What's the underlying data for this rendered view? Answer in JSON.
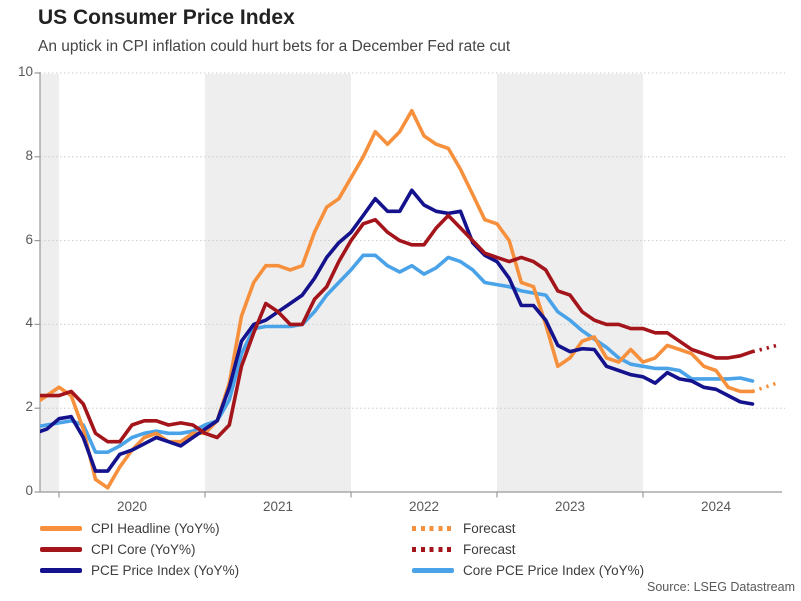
{
  "header": {
    "title": "US Consumer Price Index",
    "subtitle": "An uptick in CPI inflation could hurt bets for a December Fed rate cut"
  },
  "source": "Source: LSEG Datastream",
  "colors": {
    "cpi_headline": "#F7903C",
    "cpi_core": "#A3141B",
    "pce": "#14128C",
    "core_pce": "#4AA3E8",
    "band": "#EEEEEE",
    "grid": "#CBCBCB",
    "axis": "#999999",
    "axis_text": "#595959"
  },
  "legend": {
    "left": [
      {
        "label": "CPI Headline (YoY%)",
        "color_key": "cpi_headline",
        "style": "solid"
      },
      {
        "label": "CPI Core (YoY%)",
        "color_key": "cpi_core",
        "style": "solid"
      },
      {
        "label": "PCE Price Index (YoY%)",
        "color_key": "pce",
        "style": "solid"
      }
    ],
    "right": [
      {
        "label": "Forecast",
        "color_key": "cpi_headline",
        "style": "dotted"
      },
      {
        "label": "Forecast",
        "color_key": "cpi_core",
        "style": "dotted"
      },
      {
        "label": "Core PCE Price Index (YoY%)",
        "color_key": "core_pce",
        "style": "solid"
      }
    ]
  },
  "chart_data": {
    "type": "line",
    "title": "US Consumer Price Index",
    "x_start_month": "2019-11",
    "x_frequency": "monthly",
    "months_before_2020": 2,
    "x_tick_years": [
      2020,
      2021,
      2022,
      2023,
      2024
    ],
    "y_ticks": [
      0,
      2,
      4,
      6,
      8,
      10
    ],
    "ylim": [
      0,
      10
    ],
    "shaded_years": [
      2019,
      2021,
      2023
    ],
    "grid": "dotted-horizontal",
    "legend_position": "bottom",
    "series": [
      {
        "name": "CPI Headline (YoY%)",
        "color_key": "cpi_headline",
        "values": [
          2.1,
          2.3,
          2.5,
          2.3,
          1.5,
          0.3,
          0.1,
          0.6,
          1.0,
          1.3,
          1.4,
          1.2,
          1.2,
          1.4,
          1.4,
          1.7,
          2.6,
          4.2,
          5.0,
          5.4,
          5.4,
          5.3,
          5.4,
          6.2,
          6.8,
          7.0,
          7.5,
          8.0,
          8.6,
          8.3,
          8.6,
          9.1,
          8.5,
          8.3,
          8.2,
          7.7,
          7.1,
          6.5,
          6.4,
          6.0,
          5.0,
          4.9,
          4.0,
          3.0,
          3.2,
          3.6,
          3.7,
          3.2,
          3.1,
          3.4,
          3.1,
          3.2,
          3.5,
          3.4,
          3.3,
          3.0,
          2.9,
          2.5,
          2.4,
          2.4
        ]
      },
      {
        "name": "CPI Core (YoY%)",
        "color_key": "cpi_core",
        "values": [
          2.3,
          2.3,
          2.3,
          2.4,
          2.1,
          1.4,
          1.2,
          1.2,
          1.6,
          1.7,
          1.7,
          1.6,
          1.65,
          1.6,
          1.4,
          1.3,
          1.6,
          3.0,
          3.8,
          4.5,
          4.3,
          4.0,
          4.0,
          4.6,
          4.9,
          5.5,
          6.0,
          6.4,
          6.5,
          6.2,
          6.0,
          5.9,
          5.9,
          6.3,
          6.6,
          6.3,
          6.0,
          5.7,
          5.6,
          5.5,
          5.6,
          5.5,
          5.3,
          4.8,
          4.7,
          4.3,
          4.1,
          4.0,
          4.0,
          3.9,
          3.9,
          3.8,
          3.8,
          3.6,
          3.4,
          3.3,
          3.2,
          3.2,
          3.25,
          3.35
        ]
      },
      {
        "name": "PCE Price Index (YoY%)",
        "color_key": "pce",
        "values": [
          1.4,
          1.5,
          1.75,
          1.8,
          1.3,
          0.5,
          0.5,
          0.9,
          1.0,
          1.15,
          1.3,
          1.2,
          1.1,
          1.3,
          1.5,
          1.7,
          2.5,
          3.6,
          4.0,
          4.1,
          4.3,
          4.5,
          4.7,
          5.1,
          5.6,
          5.95,
          6.2,
          6.6,
          7.0,
          6.7,
          6.7,
          7.2,
          6.85,
          6.7,
          6.65,
          6.7,
          5.95,
          5.65,
          5.5,
          5.1,
          4.45,
          4.45,
          4.1,
          3.5,
          3.35,
          3.42,
          3.4,
          3.0,
          2.9,
          2.8,
          2.75,
          2.6,
          2.85,
          2.7,
          2.65,
          2.5,
          2.45,
          2.3,
          2.15,
          2.1
        ]
      },
      {
        "name": "Core PCE Price Index (YoY%)",
        "color_key": "core_pce",
        "values": [
          1.55,
          1.6,
          1.65,
          1.7,
          1.6,
          0.95,
          0.95,
          1.1,
          1.3,
          1.4,
          1.45,
          1.4,
          1.4,
          1.45,
          1.6,
          1.7,
          2.2,
          3.3,
          3.9,
          3.95,
          3.95,
          3.95,
          4.0,
          4.3,
          4.7,
          5.0,
          5.3,
          5.65,
          5.65,
          5.4,
          5.25,
          5.4,
          5.2,
          5.35,
          5.6,
          5.5,
          5.3,
          5.0,
          4.95,
          4.9,
          4.8,
          4.75,
          4.7,
          4.3,
          4.1,
          3.85,
          3.65,
          3.45,
          3.2,
          3.05,
          3.0,
          2.95,
          2.95,
          2.9,
          2.7,
          2.7,
          2.7,
          2.7,
          2.72,
          2.65
        ]
      }
    ],
    "forecast_series": [
      {
        "name": "Forecast",
        "of": "CPI Headline (YoY%)",
        "color_key": "cpi_headline",
        "values": [
          2.4,
          2.5,
          2.6
        ]
      },
      {
        "name": "Forecast",
        "of": "CPI Core (YoY%)",
        "color_key": "cpi_core",
        "values": [
          3.35,
          3.42,
          3.5
        ]
      }
    ]
  }
}
